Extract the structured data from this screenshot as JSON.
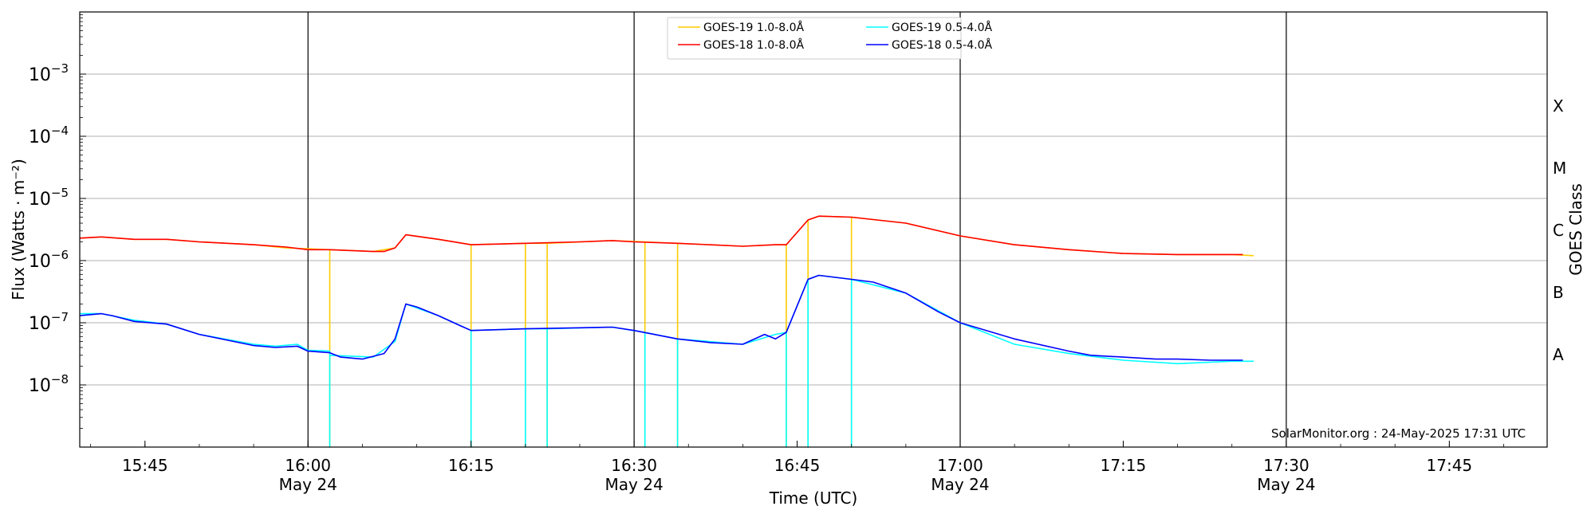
{
  "chart_data": {
    "type": "line",
    "xlabel": "Time (UTC)",
    "ylabel": "Flux (Watts · m⁻²)",
    "right_ylabel": "GOES Class",
    "yscale": "log",
    "ylim": [
      1e-09,
      0.01
    ],
    "xlim": [
      "15:39",
      "17:54"
    ],
    "x_ticks": [
      {
        "time": "15:45",
        "label": "15:45",
        "sub": ""
      },
      {
        "time": "16:00",
        "label": "16:00",
        "sub": "May 24"
      },
      {
        "time": "16:15",
        "label": "16:15",
        "sub": ""
      },
      {
        "time": "16:30",
        "label": "16:30",
        "sub": "May 24"
      },
      {
        "time": "16:45",
        "label": "16:45",
        "sub": ""
      },
      {
        "time": "17:00",
        "label": "17:00",
        "sub": "May 24"
      },
      {
        "time": "17:15",
        "label": "17:15",
        "sub": ""
      },
      {
        "time": "17:30",
        "label": "17:30",
        "sub": "May 24"
      },
      {
        "time": "17:45",
        "label": "17:45",
        "sub": ""
      }
    ],
    "y_ticks": [
      {
        "value": 1e-08,
        "label": "10",
        "exp": "−8"
      },
      {
        "value": 1e-07,
        "label": "10",
        "exp": "−7"
      },
      {
        "value": 1e-06,
        "label": "10",
        "exp": "−6"
      },
      {
        "value": 1e-05,
        "label": "10",
        "exp": "−5"
      },
      {
        "value": 0.0001,
        "label": "10",
        "exp": "−4"
      },
      {
        "value": 0.001,
        "label": "10",
        "exp": "−3"
      }
    ],
    "goes_classes": [
      {
        "label": "A",
        "value": 3.16e-08
      },
      {
        "label": "B",
        "value": 3.16e-07
      },
      {
        "label": "C",
        "value": 3.16e-06
      },
      {
        "label": "M",
        "value": 3.16e-05
      },
      {
        "label": "X",
        "value": 0.000316
      }
    ],
    "vertical_lines": [
      "16:00",
      "16:30",
      "17:00",
      "17:30"
    ],
    "grid": "horizontal",
    "legend_position": "top-center",
    "legend": [
      {
        "name": "GOES-19 1.0-8.0Å",
        "color": "#ffcc00"
      },
      {
        "name": "GOES-18 1.0-8.0Å",
        "color": "#ff0000"
      },
      {
        "name": "GOES-19 0.5-4.0Å",
        "color": "#00ffff"
      },
      {
        "name": "GOES-18 0.5-4.0Å",
        "color": "#0000ff"
      }
    ],
    "annotation": "SolarMonitor.org : 24-May-2025 17:31 UTC",
    "series": [
      {
        "name": "GOES-19 1.0-8.0Å",
        "color": "#ffcc00",
        "x": [
          "15:39",
          "15:41",
          "15:44",
          "15:47",
          "15:50",
          "15:55",
          "15:58",
          "16:02",
          "16:02",
          "16:02",
          "16:06",
          "16:08",
          "16:09",
          "16:12",
          "16:15",
          "16:15",
          "16:15",
          "16:20",
          "16:20",
          "16:20",
          "16:22",
          "16:22",
          "16:22",
          "16:28",
          "16:31",
          "16:31",
          "16:31",
          "16:34",
          "16:34",
          "16:34",
          "16:40",
          "16:43",
          "16:44",
          "16:44",
          "16:44",
          "16:46",
          "16:46",
          "16:46",
          "16:47",
          "16:50",
          "16:50",
          "16:50",
          "16:55",
          "17:00",
          "17:05",
          "17:10",
          "17:15",
          "17:20",
          "17:25",
          "17:27"
        ],
        "y": [
          2.3e-06,
          2.4e-06,
          2.2e-06,
          2.2e-06,
          2e-06,
          1.8e-06,
          1.6e-06,
          1.5e-06,
          1e-09,
          1.5e-06,
          1.4e-06,
          1.6e-06,
          2.6e-06,
          2.2e-06,
          1.8e-06,
          1e-09,
          1.8e-06,
          1.9e-06,
          1e-09,
          1.9e-06,
          1.9e-06,
          1e-09,
          1.9e-06,
          2.1e-06,
          2e-06,
          1e-09,
          2e-06,
          1.9e-06,
          1e-09,
          1.9e-06,
          1.7e-06,
          1.8e-06,
          1.8e-06,
          1e-09,
          1.8e-06,
          4.5e-06,
          1e-09,
          4.5e-06,
          5.2e-06,
          5e-06,
          1e-09,
          5e-06,
          4e-06,
          2.5e-06,
          1.8e-06,
          1.5e-06,
          1.3e-06,
          1.25e-06,
          1.25e-06,
          1.2e-06
        ]
      },
      {
        "name": "GOES-18 1.0-8.0Å",
        "color": "#ff0000",
        "x": [
          "15:39",
          "15:41",
          "15:44",
          "15:47",
          "15:50",
          "15:55",
          "15:58",
          "16:00",
          "16:02",
          "16:06",
          "16:07",
          "16:08",
          "16:09",
          "16:12",
          "16:15",
          "16:20",
          "16:25",
          "16:28",
          "16:30",
          "16:34",
          "16:40",
          "16:43",
          "16:44",
          "16:46",
          "16:47",
          "16:50",
          "16:55",
          "17:00",
          "17:05",
          "17:10",
          "17:15",
          "17:20",
          "17:25",
          "17:26"
        ],
        "y": [
          2.3e-06,
          2.4e-06,
          2.2e-06,
          2.2e-06,
          2e-06,
          1.8e-06,
          1.65e-06,
          1.5e-06,
          1.5e-06,
          1.4e-06,
          1.4e-06,
          1.6e-06,
          2.6e-06,
          2.2e-06,
          1.8e-06,
          1.9e-06,
          2e-06,
          2.1e-06,
          2e-06,
          1.9e-06,
          1.7e-06,
          1.8e-06,
          1.8e-06,
          4.5e-06,
          5.2e-06,
          5e-06,
          4e-06,
          2.5e-06,
          1.8e-06,
          1.5e-06,
          1.3e-06,
          1.25e-06,
          1.25e-06,
          1.25e-06
        ]
      },
      {
        "name": "GOES-19 0.5-4.0Å",
        "color": "#00ffff",
        "x": [
          "15:39",
          "15:41",
          "15:44",
          "15:47",
          "15:50",
          "15:55",
          "15:57",
          "15:59",
          "16:00",
          "16:02",
          "16:02",
          "16:02",
          "16:06",
          "16:08",
          "16:09",
          "16:12",
          "16:15",
          "16:15",
          "16:15",
          "16:20",
          "16:20",
          "16:20",
          "16:22",
          "16:22",
          "16:22",
          "16:28",
          "16:31",
          "16:31",
          "16:31",
          "16:34",
          "16:34",
          "16:34",
          "16:40",
          "16:43",
          "16:44",
          "16:44",
          "16:44",
          "16:46",
          "16:46",
          "16:46",
          "16:47",
          "16:50",
          "16:50",
          "16:50",
          "16:55",
          "17:00",
          "17:05",
          "17:10",
          "17:15",
          "17:20",
          "17:25",
          "17:27"
        ],
        "y": [
          1.4e-07,
          1.4e-07,
          1.1e-07,
          9.5e-08,
          6.5e-08,
          4.5e-08,
          4.2e-08,
          4.5e-08,
          3.6e-08,
          3.5e-08,
          1e-09,
          3e-08,
          2.8e-08,
          5e-08,
          2e-07,
          1.3e-07,
          7.5e-08,
          1e-09,
          7.5e-08,
          8e-08,
          1e-09,
          8e-08,
          8e-08,
          1e-09,
          8e-08,
          8.5e-08,
          7e-08,
          1e-09,
          7e-08,
          5.5e-08,
          1e-09,
          5.5e-08,
          4.5e-08,
          6.5e-08,
          7e-08,
          1e-09,
          7e-08,
          5e-07,
          1e-09,
          5e-07,
          5.8e-07,
          5e-07,
          1e-09,
          5e-07,
          3e-07,
          1e-07,
          4.5e-08,
          3.2e-08,
          2.5e-08,
          2.2e-08,
          2.4e-08,
          2.4e-08
        ]
      },
      {
        "name": "GOES-18 0.5-4.0Å",
        "color": "#0000ff",
        "x": [
          "15:39",
          "15:41",
          "15:42",
          "15:44",
          "15:47",
          "15:50",
          "15:55",
          "15:57",
          "15:59",
          "16:00",
          "16:02",
          "16:03",
          "16:05",
          "16:07",
          "16:08",
          "16:09",
          "16:10",
          "16:12",
          "16:14",
          "16:15",
          "16:20",
          "16:25",
          "16:28",
          "16:30",
          "16:34",
          "16:37",
          "16:40",
          "16:42",
          "16:43",
          "16:44",
          "16:46",
          "16:47",
          "16:50",
          "16:52",
          "16:55",
          "16:58",
          "17:00",
          "17:05",
          "17:10",
          "17:12",
          "17:15",
          "17:18",
          "17:20",
          "17:23",
          "17:26"
        ],
        "y": [
          1.3e-07,
          1.4e-07,
          1.3e-07,
          1.05e-07,
          9.5e-08,
          6.5e-08,
          4.3e-08,
          4e-08,
          4.2e-08,
          3.5e-08,
          3.3e-08,
          2.8e-08,
          2.6e-08,
          3.2e-08,
          5.5e-08,
          2e-07,
          1.8e-07,
          1.3e-07,
          9e-08,
          7.5e-08,
          8e-08,
          8.3e-08,
          8.5e-08,
          7.5e-08,
          5.5e-08,
          4.8e-08,
          4.5e-08,
          6.5e-08,
          5.5e-08,
          7e-08,
          5e-07,
          5.8e-07,
          5e-07,
          4.5e-07,
          3e-07,
          1.5e-07,
          1e-07,
          5.5e-08,
          3.5e-08,
          3e-08,
          2.8e-08,
          2.6e-08,
          2.6e-08,
          2.5e-08,
          2.5e-08
        ]
      }
    ]
  }
}
